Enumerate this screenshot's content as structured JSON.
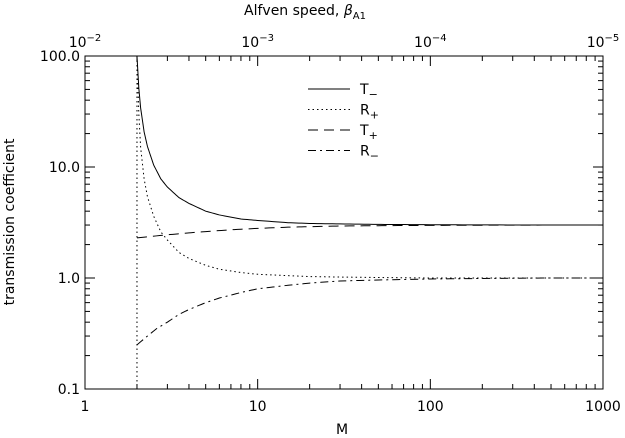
{
  "chart_data": {
    "type": "line",
    "xlabel": "M",
    "ylabel": "transmission coefficient",
    "top_axis_label_main": "Alfven speed,  ",
    "top_axis_label_symbol": "β",
    "top_axis_label_sub": "A1",
    "x_scale": "log",
    "y_scale": "log",
    "xlim": [
      1,
      1000
    ],
    "ylim": [
      0.1,
      100
    ],
    "x_ticks": [
      {
        "value": 1,
        "label": "1"
      },
      {
        "value": 10,
        "label": "10"
      },
      {
        "value": 100,
        "label": "100"
      },
      {
        "value": 1000,
        "label": "1000"
      }
    ],
    "y_ticks": [
      {
        "value": 0.1,
        "label": "0.1"
      },
      {
        "value": 1,
        "label": "1.0"
      },
      {
        "value": 10,
        "label": "10.0"
      },
      {
        "value": 100,
        "label": "100.0"
      }
    ],
    "top_ticks": [
      {
        "M": 1,
        "base": "10",
        "exp": "−2"
      },
      {
        "M": 10,
        "base": "10",
        "exp": "−3"
      },
      {
        "M": 100,
        "base": "10",
        "exp": "−4"
      },
      {
        "M": 1000,
        "base": "10",
        "exp": "−5"
      }
    ],
    "grid": false,
    "legend_placement": "top-center",
    "series": [
      {
        "name": "T",
        "name_sub": "−",
        "dash": "solid",
        "x": [
          2,
          2.05,
          2.1,
          2.2,
          2.3,
          2.5,
          2.75,
          3,
          3.5,
          4,
          5,
          6,
          8,
          10,
          15,
          20,
          30,
          50,
          100,
          200,
          500,
          1000
        ],
        "y": [
          100,
          51.1,
          34.0,
          20.7,
          15.3,
          10.4,
          7.8,
          6.6,
          5.3,
          4.7,
          4.0,
          3.7,
          3.4,
          3.3,
          3.15,
          3.1,
          3.07,
          3.04,
          3.02,
          3.01,
          3.0,
          3.0
        ]
      },
      {
        "name": "R",
        "name_sub": "+",
        "dash": "dotted",
        "x": [
          2,
          2.05,
          2.1,
          2.2,
          2.3,
          2.5,
          2.75,
          3,
          3.5,
          4,
          5,
          6,
          8,
          10,
          15,
          20,
          30,
          50,
          100,
          200,
          500,
          1000
        ],
        "y": [
          100,
          30.0,
          15.0,
          7.8,
          5.4,
          3.6,
          2.6,
          2.2,
          1.7,
          1.5,
          1.3,
          1.2,
          1.12,
          1.08,
          1.05,
          1.03,
          1.02,
          1.01,
          1.0,
          1.0,
          1.0,
          1.0
        ]
      },
      {
        "name": "T",
        "name_sub": "+",
        "dash": "dashed",
        "x": [
          2,
          3,
          4,
          5,
          7,
          10,
          15,
          20,
          30,
          50,
          100,
          200,
          500,
          1000
        ],
        "y": [
          2.3,
          2.45,
          2.55,
          2.62,
          2.72,
          2.8,
          2.87,
          2.9,
          2.94,
          2.96,
          2.98,
          2.99,
          3.0,
          3.0
        ]
      },
      {
        "name": "R",
        "name_sub": "−",
        "dash": "dashdot",
        "x": [
          2,
          2.3,
          2.6,
          3,
          3.5,
          4,
          5,
          6,
          8,
          10,
          15,
          20,
          30,
          50,
          100,
          200,
          500,
          1000
        ],
        "y": [
          0.25,
          0.3,
          0.35,
          0.4,
          0.47,
          0.52,
          0.6,
          0.66,
          0.74,
          0.8,
          0.86,
          0.9,
          0.94,
          0.96,
          0.98,
          0.99,
          1.0,
          1.0
        ]
      }
    ],
    "vertical_line": {
      "x": 2,
      "dash": "dotted"
    }
  }
}
